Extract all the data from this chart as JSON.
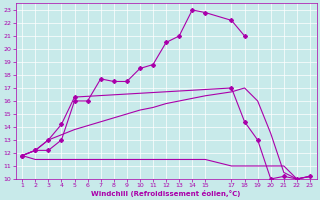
{
  "bg_color": "#c8eaea",
  "line_color": "#aa00aa",
  "xlabel": "Windchill (Refroidissement éolien,°C)",
  "xlim": [
    0.5,
    23.5
  ],
  "ylim": [
    10,
    23.5
  ],
  "xticks": [
    1,
    2,
    3,
    4,
    5,
    6,
    7,
    8,
    9,
    10,
    11,
    12,
    13,
    14,
    15,
    17,
    18,
    19,
    20,
    21,
    22,
    23
  ],
  "yticks": [
    10,
    11,
    12,
    13,
    14,
    15,
    16,
    17,
    18,
    19,
    20,
    21,
    22,
    23
  ],
  "curve_top_x": [
    1,
    2,
    3,
    4,
    5,
    6,
    7,
    8,
    9,
    10,
    11,
    12,
    13,
    14,
    15,
    17,
    18
  ],
  "curve_top_y": [
    11.8,
    12.2,
    12.2,
    13.0,
    16.0,
    16.0,
    17.7,
    17.5,
    17.5,
    18.5,
    18.8,
    20.5,
    21.0,
    23.0,
    22.8,
    22.2,
    21.0
  ],
  "curve_mid_x": [
    1,
    2,
    3,
    4,
    5,
    17,
    18,
    19,
    20,
    21,
    22,
    23
  ],
  "curve_mid_y": [
    11.8,
    12.2,
    13.0,
    14.2,
    16.3,
    17.0,
    14.4,
    13.0,
    10.0,
    10.2,
    10.0,
    10.2
  ],
  "curve_upper_smooth_x": [
    1,
    2,
    3,
    4,
    5,
    6,
    7,
    8,
    9,
    10,
    11,
    12,
    13,
    14,
    15,
    17,
    18,
    19,
    20,
    21,
    22,
    23
  ],
  "curve_upper_smooth_y": [
    11.8,
    12.2,
    13.0,
    13.4,
    13.8,
    14.1,
    14.4,
    14.7,
    15.0,
    15.3,
    15.5,
    15.8,
    16.0,
    16.2,
    16.4,
    16.7,
    17.0,
    16.0,
    13.5,
    10.5,
    10.0,
    10.2
  ],
  "curve_lower_smooth_x": [
    1,
    2,
    3,
    4,
    5,
    6,
    7,
    8,
    9,
    10,
    11,
    12,
    13,
    14,
    15,
    17,
    18,
    19,
    20,
    21,
    22,
    23
  ],
  "curve_lower_smooth_y": [
    11.8,
    11.5,
    11.5,
    11.5,
    11.5,
    11.5,
    11.5,
    11.5,
    11.5,
    11.5,
    11.5,
    11.5,
    11.5,
    11.5,
    11.5,
    11.0,
    11.0,
    11.0,
    11.0,
    11.0,
    10.0,
    10.2
  ]
}
